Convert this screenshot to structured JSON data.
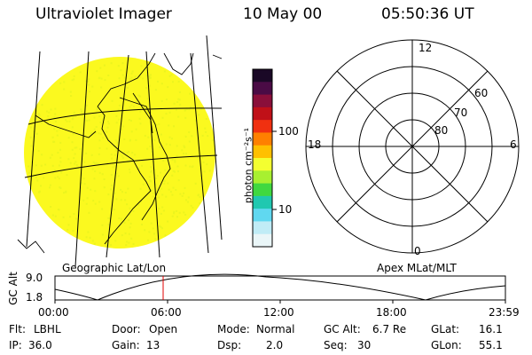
{
  "header": {
    "instrument": "Ultraviolet Imager",
    "date": "10 May 00",
    "time": "05:50:36 UT"
  },
  "colorbar": {
    "unit_label": "photon cm⁻²s⁻¹",
    "tick_100": "100",
    "tick_10": "10",
    "colors": [
      "#1a0826",
      "#4a0b45",
      "#8a0f3a",
      "#c01018",
      "#f03010",
      "#ff8000",
      "#ffc000",
      "#f4ff30",
      "#a8f030",
      "#40d840",
      "#20c8b0",
      "#60d8f0",
      "#c0ecf6",
      "#eaf6f8"
    ]
  },
  "left_panel": {
    "caption": "Geographic Lat/Lon",
    "image_fill": "#fbf91f"
  },
  "right_panel": {
    "caption": "Apex MLat/MLT",
    "mlt_12": "12",
    "mlt_18": "18",
    "mlt_6": "6",
    "mlt_0": "0",
    "lat_60": "60",
    "lat_70": "70",
    "lat_80": "80"
  },
  "altitude_plot": {
    "ylabel": "GC Alt",
    "ytick_max": "9.0",
    "ytick_min": "1.8",
    "xticks": [
      "00:00",
      "06:00",
      "12:00",
      "18:00",
      "23:59"
    ],
    "marker_color": "#e00000",
    "marker_time": "05:50"
  },
  "status": {
    "flt_label": "Flt:",
    "flt_value": "LBHL",
    "ip_label": "IP:",
    "ip_value": "36.0",
    "door_label": "Door:",
    "door_value": "Open",
    "gain_label": "Gain:",
    "gain_value": "13",
    "mode_label": "Mode:",
    "mode_value": "Normal",
    "dsp_label": "Dsp:",
    "dsp_value": "2.0",
    "gcalt_label": "GC Alt:",
    "gcalt_value": "6.7 Re",
    "seq_label": "Seq:",
    "seq_value": "30",
    "glat_label": "GLat:",
    "glat_value": "16.1",
    "glon_label": "GLon:",
    "glon_value": "55.1"
  }
}
